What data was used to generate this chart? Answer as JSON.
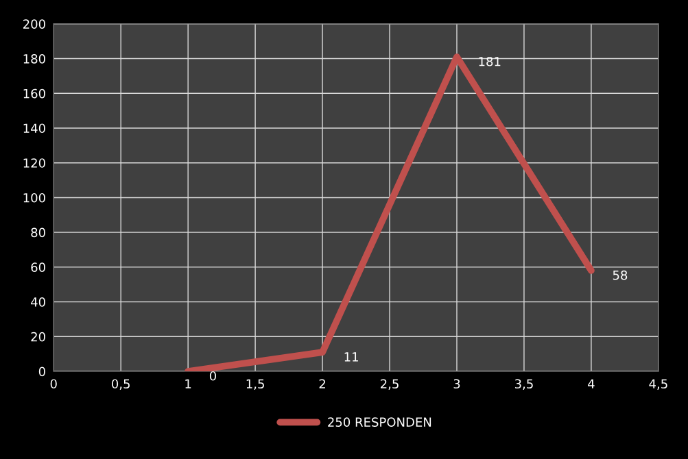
{
  "chart_data": {
    "type": "line",
    "x": [
      1,
      2,
      3,
      4
    ],
    "series": [
      {
        "name": "250 RESPONDEN",
        "color": "#c0504d",
        "values": [
          0,
          11,
          181,
          58
        ]
      }
    ],
    "xlim": [
      0,
      4.5
    ],
    "xticks": [
      0,
      {
        "value": 0.5,
        "label": "0,5"
      },
      1,
      {
        "value": 1.5,
        "label": "1,5"
      },
      2,
      {
        "value": 2.5,
        "label": "2,5"
      },
      3,
      {
        "value": 3.5,
        "label": "3,5"
      },
      4,
      {
        "value": 4.5,
        "label": "4,5"
      }
    ],
    "ylim": [
      0,
      200
    ],
    "yticks": [
      0,
      20,
      40,
      60,
      80,
      100,
      120,
      140,
      160,
      180,
      200
    ],
    "grid": true,
    "legend": "bottom",
    "marker": "none",
    "line_style": "solid",
    "data_labels": true
  }
}
